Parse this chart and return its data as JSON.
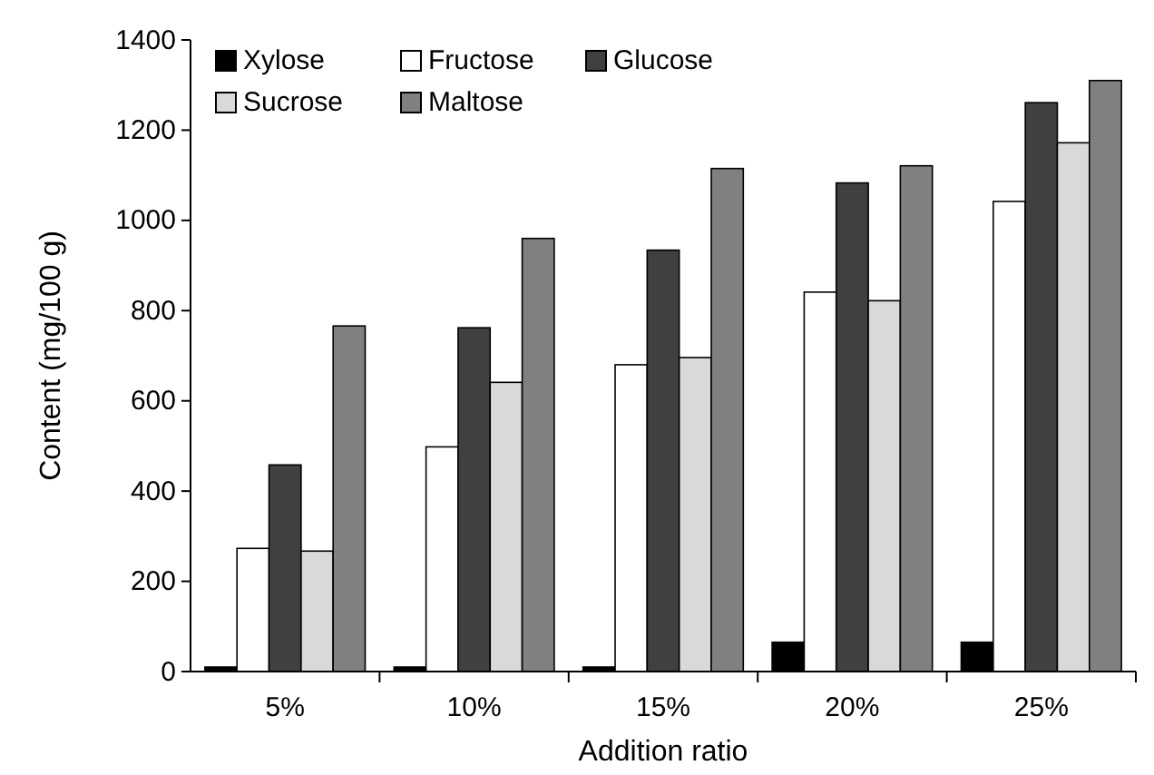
{
  "chart_data": {
    "type": "bar",
    "xlabel": "Addition ratio",
    "ylabel": "Content (mg/100 g)",
    "categories": [
      "5%",
      "10%",
      "15%",
      "20%",
      "25%"
    ],
    "series": [
      {
        "name": "Xylose",
        "color": "#000000",
        "values": [
          10,
          10,
          10,
          65,
          65
        ]
      },
      {
        "name": "Fructose",
        "color": "#ffffff",
        "values": [
          273,
          498,
          680,
          841,
          1042
        ]
      },
      {
        "name": "Glucose",
        "color": "#404040",
        "values": [
          458,
          762,
          934,
          1083,
          1261
        ]
      },
      {
        "name": "Sucrose",
        "color": "#d9d9d9",
        "values": [
          267,
          641,
          696,
          822,
          1172
        ]
      },
      {
        "name": "Maltose",
        "color": "#808080",
        "values": [
          766,
          960,
          1115,
          1121,
          1310
        ]
      }
    ],
    "ylim": [
      0,
      1400
    ],
    "yticks": [
      0,
      200,
      400,
      600,
      800,
      1000,
      1200,
      1400
    ],
    "grid": false,
    "legend": "top left"
  }
}
